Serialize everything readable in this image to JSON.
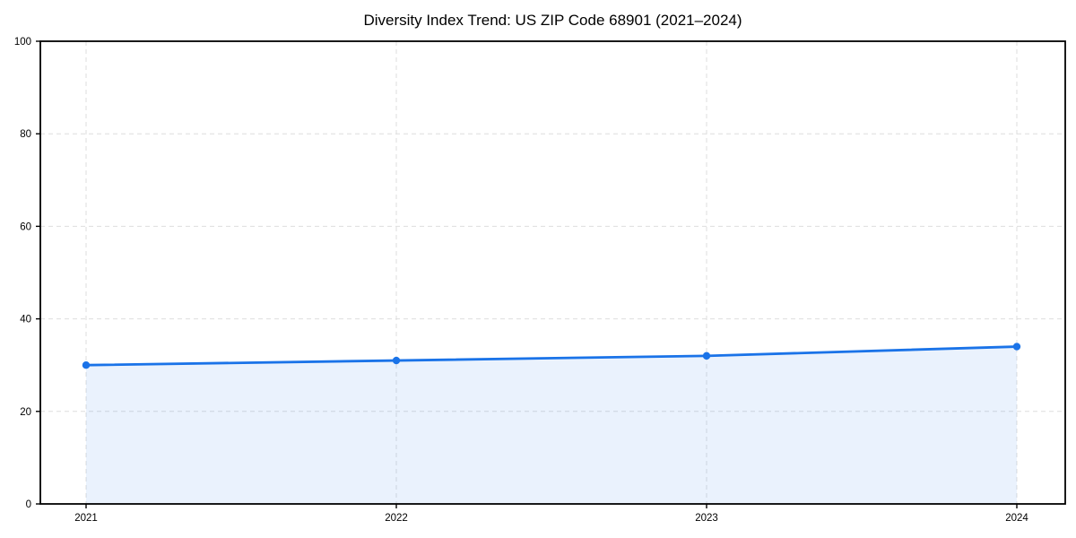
{
  "chart_data": {
    "type": "line",
    "title": "Diversity Index Trend: US ZIP Code 68901 (2021–2024)",
    "x": [
      2021,
      2022,
      2023,
      2024
    ],
    "x_tick_labels": [
      "2021",
      "2022",
      "2023",
      "2024"
    ],
    "series": [
      {
        "name": "Diversity Index",
        "values": [
          30,
          31,
          32,
          34
        ]
      }
    ],
    "xlabel": "",
    "ylabel": "",
    "ylim": [
      0,
      100
    ],
    "yticks": [
      0,
      20,
      40,
      60,
      80,
      100
    ],
    "grid": "dashed",
    "legend_position": "none",
    "area_fill": true,
    "marker": "circle",
    "colors": {
      "line": "#1a73e8",
      "marker": "#1a73e8",
      "area_fill": "rgba(26,115,232,0.09)",
      "grid": "#dedede",
      "axis": "#000000",
      "text": "#000000"
    }
  }
}
